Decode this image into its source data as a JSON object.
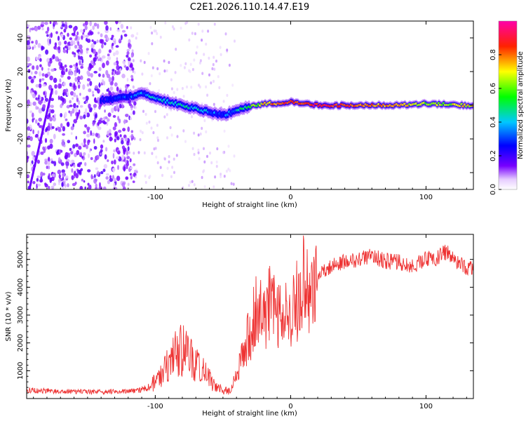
{
  "figure": {
    "title": "C2E1.2026.110.14.47.E19"
  },
  "chart_data": [
    {
      "type": "heatmap",
      "name": "spectrogram",
      "xlabel": "Height of straight line (km)",
      "ylabel": "Frequency (Hz)",
      "xlim": [
        -195,
        135
      ],
      "ylim": [
        -50,
        50
      ],
      "x_ticks": [
        -100,
        0,
        100
      ],
      "y_ticks": [
        -40,
        -20,
        0,
        20,
        40
      ],
      "colorbar": {
        "label": "Normalized spectral amplitude",
        "range": [
          0.0,
          1.0
        ],
        "ticks": [
          "0.0",
          "0.2",
          "0.4",
          "0.6",
          "0.8"
        ]
      },
      "ridge": {
        "description": "dominant frequency line",
        "x": [
          -140,
          -120,
          -110,
          -100,
          -80,
          -60,
          -50,
          -40,
          -30,
          -20,
          -10,
          0,
          10,
          20,
          50,
          80,
          100,
          130
        ],
        "freq": [
          3,
          5,
          7,
          4,
          0,
          -4,
          -6,
          -3,
          -1,
          1,
          1,
          2,
          1,
          0,
          0,
          0,
          1,
          0
        ],
        "amplitude": [
          0.2,
          0.3,
          0.35,
          0.4,
          0.45,
          0.35,
          0.3,
          0.4,
          0.55,
          0.7,
          0.8,
          0.85,
          0.85,
          0.9,
          0.8,
          0.75,
          0.6,
          0.7
        ]
      }
    },
    {
      "type": "line",
      "name": "snr",
      "xlabel": "Height of straight line (km)",
      "ylabel": "SNR (10 * v/v)",
      "xlim": [
        -195,
        135
      ],
      "ylim": [
        0,
        5900
      ],
      "x_ticks": [
        -100,
        0,
        100
      ],
      "y_ticks": [
        1000,
        2000,
        3000,
        4000,
        5000
      ],
      "color": "#ee3333",
      "series": [
        {
          "name": "SNR",
          "x": [
            -195,
            -180,
            -160,
            -140,
            -120,
            -110,
            -100,
            -95,
            -90,
            -85,
            -80,
            -75,
            -70,
            -65,
            -60,
            -55,
            -50,
            -45,
            -40,
            -35,
            -30,
            -25,
            -20,
            -15,
            -10,
            -5,
            0,
            5,
            10,
            15,
            20,
            25,
            30,
            40,
            50,
            60,
            70,
            80,
            85,
            90,
            100,
            110,
            115,
            120,
            125,
            130,
            135
          ],
          "y": [
            300,
            280,
            250,
            240,
            260,
            300,
            600,
            900,
            1300,
            1600,
            1800,
            1500,
            1200,
            1000,
            700,
            450,
            300,
            280,
            800,
            1700,
            2400,
            3200,
            2800,
            3600,
            2800,
            3800,
            3300,
            3500,
            4200,
            3600,
            4400,
            4600,
            4800,
            4900,
            5000,
            5150,
            4950,
            4900,
            4800,
            4750,
            5000,
            5100,
            5300,
            5000,
            4900,
            4700,
            4650
          ]
        }
      ]
    }
  ]
}
